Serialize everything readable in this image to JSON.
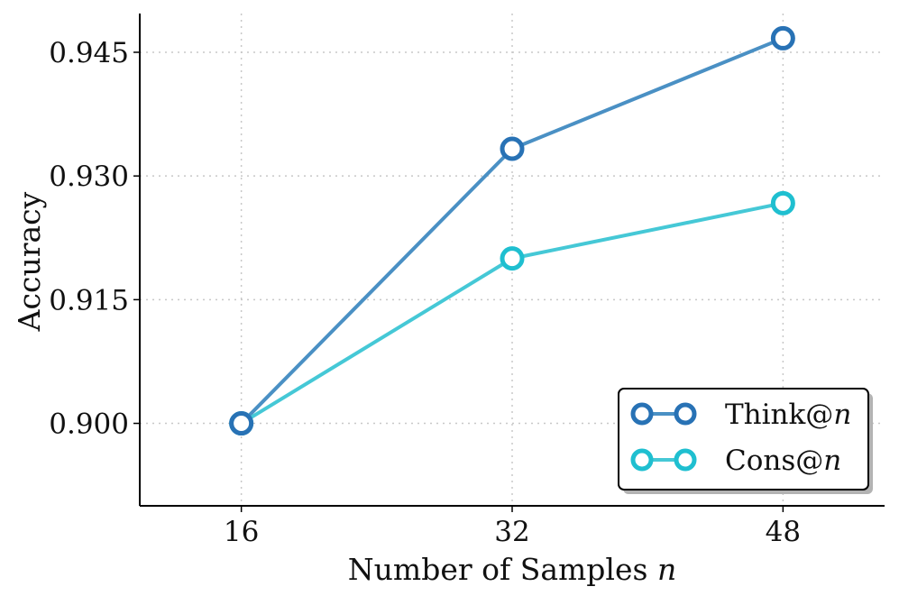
{
  "chart_data": {
    "type": "line",
    "title": "",
    "xlabel": "Number of Samples",
    "xlabel_var": "n",
    "ylabel": "Accuracy",
    "x": [
      16,
      32,
      48
    ],
    "x_tick_labels": [
      "16",
      "32",
      "48"
    ],
    "y_tick_labels": [
      "0.900",
      "0.915",
      "0.930",
      "0.945"
    ],
    "y_ticks": [
      0.9,
      0.915,
      0.93,
      0.945
    ],
    "xlim": [
      10,
      54
    ],
    "ylim": [
      0.89,
      0.9497
    ],
    "grid": true,
    "legend_position": "bottom-right",
    "series": [
      {
        "name": "Think@",
        "name_var": "n",
        "color": "#4a90c4",
        "marker_color": "#2872b5",
        "values": [
          0.9,
          0.9333,
          0.9467
        ]
      },
      {
        "name": "Cons@",
        "name_var": "n",
        "color": "#45c8d6",
        "marker_color": "#1fbfd0",
        "values": [
          0.9,
          0.92,
          0.9267
        ]
      }
    ]
  }
}
